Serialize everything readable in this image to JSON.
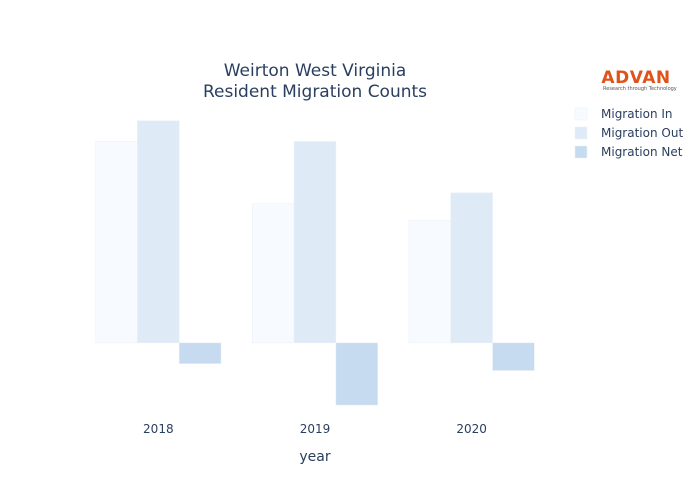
{
  "chart_data": {
    "type": "bar",
    "title_lines": [
      "Weirton West Virginia",
      "Resident Migration Counts"
    ],
    "xlabel": "year",
    "ylabel": "",
    "categories": [
      "2018",
      "2019",
      "2020"
    ],
    "series": [
      {
        "name": "Migration In",
        "color": "#f7fbff",
        "values": [
          1020,
          705,
          620
        ]
      },
      {
        "name": "Migration Out",
        "color": "#deebf7",
        "values": [
          1125,
          1020,
          760
        ]
      },
      {
        "name": "Migration Net",
        "color": "#c6dbef",
        "values": [
          -105,
          -315,
          -140
        ]
      }
    ],
    "ylim": [
      -340,
      1230
    ],
    "grid": false,
    "legend": "top-right"
  },
  "logo": {
    "name": "ADVAN",
    "tagline": "Research through Technology"
  }
}
